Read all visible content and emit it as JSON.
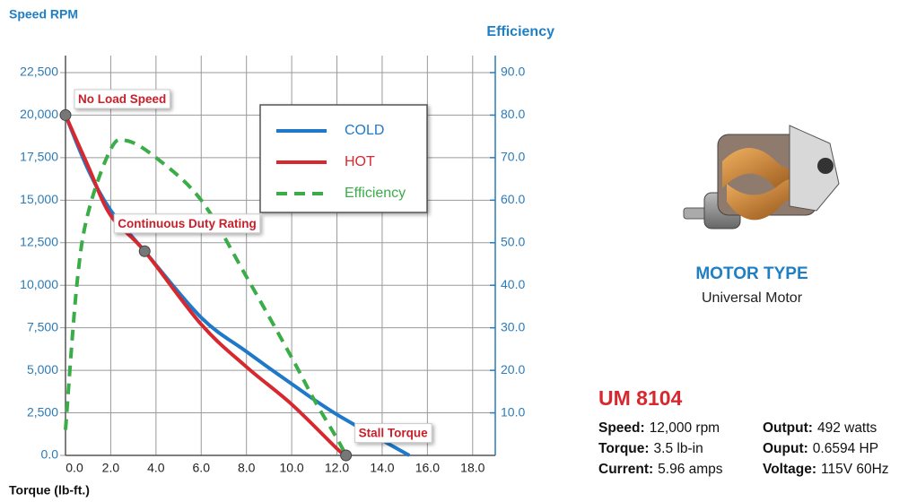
{
  "chart_data": {
    "type": "line",
    "y_label": "Speed RPM",
    "y2_label": "Efficiency",
    "x_label": "Torque (lb-ft.)",
    "xlim": [
      0,
      19
    ],
    "ylim": [
      0,
      23500
    ],
    "y2lim": [
      0,
      94
    ],
    "xticks": [
      {
        "value": 0,
        "label": "0.0"
      },
      {
        "value": 2,
        "label": "2.0"
      },
      {
        "value": 4,
        "label": "4.0"
      },
      {
        "value": 6,
        "label": "6.0"
      },
      {
        "value": 8,
        "label": "8.0"
      },
      {
        "value": 10,
        "label": "10.0"
      },
      {
        "value": 12,
        "label": "12.0"
      },
      {
        "value": 14,
        "label": "14.0"
      },
      {
        "value": 16,
        "label": "16.0"
      },
      {
        "value": 18,
        "label": "18.0"
      }
    ],
    "yticks": [
      {
        "value": 0,
        "label": "0.0"
      },
      {
        "value": 2500,
        "label": "2,500"
      },
      {
        "value": 5000,
        "label": "5,000"
      },
      {
        "value": 7500,
        "label": "7,500"
      },
      {
        "value": 10000,
        "label": "10,000"
      },
      {
        "value": 12500,
        "label": "12,500"
      },
      {
        "value": 15000,
        "label": "15,000"
      },
      {
        "value": 17500,
        "label": "17,500"
      },
      {
        "value": 20000,
        "label": "20,000"
      },
      {
        "value": 22500,
        "label": "22,500"
      }
    ],
    "y2ticks": [
      {
        "value": 10,
        "label": "10.0"
      },
      {
        "value": 20,
        "label": "20.0"
      },
      {
        "value": 30,
        "label": "30.0"
      },
      {
        "value": 40,
        "label": "40.0"
      },
      {
        "value": 50,
        "label": "50.0"
      },
      {
        "value": 60,
        "label": "60.0"
      },
      {
        "value": 70,
        "label": "70.0"
      },
      {
        "value": 80,
        "label": "80.0"
      },
      {
        "value": 90,
        "label": "90.0"
      }
    ],
    "grid": true,
    "legend": "upper center",
    "series": [
      {
        "name": "COLD",
        "color": "#1f78c8",
        "x": [
          0,
          1,
          2,
          3.5,
          6,
          8,
          10,
          12,
          15.2
        ],
        "values": [
          20000,
          16800,
          14400,
          12000,
          8100,
          6100,
          4200,
          2400,
          0
        ]
      },
      {
        "name": "HOT",
        "color": "#d7282f",
        "x": [
          0,
          1,
          2,
          3.5,
          6,
          8,
          10,
          12,
          12.4
        ],
        "values": [
          20000,
          17000,
          14100,
          12000,
          7700,
          5200,
          3000,
          400,
          0
        ]
      },
      {
        "name": "Efficiency",
        "color": "#3aad48",
        "dashed": true,
        "axis": "y2",
        "x": [
          0,
          0.5,
          1,
          2,
          2.7,
          4,
          6,
          8,
          10,
          11,
          12,
          12.4
        ],
        "values": [
          6,
          40,
          57,
          72,
          74,
          70,
          60,
          42,
          23,
          13,
          4,
          0
        ]
      }
    ],
    "annotations": [
      {
        "text": "No Load Speed",
        "x": 0,
        "y": 20000
      },
      {
        "text": "Continuous Duty Rating",
        "x": 3.5,
        "y": 12000
      },
      {
        "text": "Stall Torque",
        "x": 12.4,
        "y": 0
      }
    ]
  },
  "product": {
    "type_label": "MOTOR TYPE",
    "type": "Universal Motor",
    "model": "UM 8104",
    "specs": [
      {
        "label": "Speed:",
        "value": "12,000 rpm"
      },
      {
        "label": "Torque:",
        "value": "3.5 lb-in"
      },
      {
        "label": "Current:",
        "value": "5.96 amps"
      },
      {
        "label": "Output:",
        "value": "492 watts"
      },
      {
        "label": "Ouput:",
        "value": "0.6594 HP"
      },
      {
        "label": "Voltage:",
        "value": "115V 60Hz"
      }
    ]
  }
}
